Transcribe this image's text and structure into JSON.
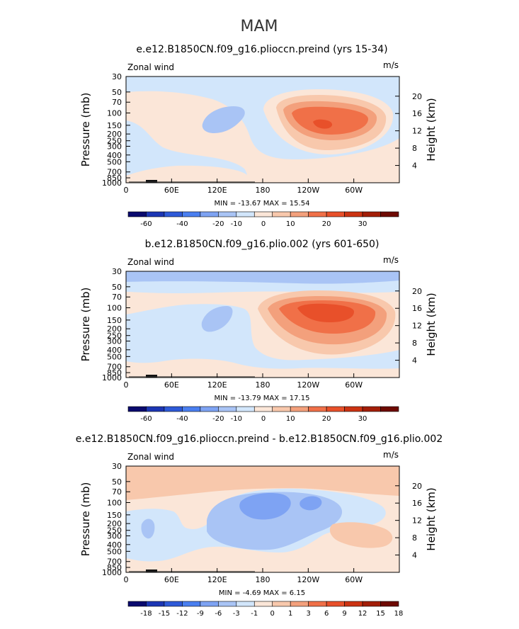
{
  "page": {
    "title": "MAM"
  },
  "chart_data": [
    {
      "type": "heatmap",
      "title": "e.e12.B1850CN.f09_g16.plioccn.preind (yrs 15-34)",
      "subtitle_left": "Zonal wind",
      "units": "m/s",
      "ylabel": "Pressure (mb)",
      "ylabel_right": "Height (km)",
      "x_ticks": [
        "0",
        "60E",
        "120E",
        "180",
        "120W",
        "60W"
      ],
      "y_ticks": [
        "30",
        "50",
        "70",
        "100",
        "150",
        "200",
        "250",
        "300",
        "400",
        "500",
        "700",
        "850",
        "1000"
      ],
      "y_right_ticks": [
        "20",
        "16",
        "12",
        "8",
        "4"
      ],
      "stats": "MIN = -13.67   MAX =  15.54",
      "min": -13.67,
      "max": 15.54,
      "colorbar_labels": [
        "-60",
        "-40",
        "-20",
        "-10",
        "0",
        "10",
        "20",
        "30"
      ],
      "levels": [
        -60,
        -50,
        -40,
        -30,
        -20,
        -15,
        -10,
        -5,
        0,
        5,
        10,
        15,
        20,
        25,
        30
      ]
    },
    {
      "type": "heatmap",
      "title": "b.e12.B1850CN.f09_g16.plio.002 (yrs 601-650)",
      "subtitle_left": "Zonal wind",
      "units": "m/s",
      "ylabel": "Pressure (mb)",
      "ylabel_right": "Height (km)",
      "x_ticks": [
        "0",
        "60E",
        "120E",
        "180",
        "120W",
        "60W"
      ],
      "y_ticks": [
        "30",
        "50",
        "70",
        "100",
        "150",
        "200",
        "250",
        "300",
        "400",
        "500",
        "700",
        "850",
        "1000"
      ],
      "y_right_ticks": [
        "20",
        "16",
        "12",
        "8",
        "4"
      ],
      "stats": "MIN = -13.79   MAX =  17.15",
      "min": -13.79,
      "max": 17.15,
      "colorbar_labels": [
        "-60",
        "-40",
        "-20",
        "-10",
        "0",
        "10",
        "20",
        "30"
      ],
      "levels": [
        -60,
        -50,
        -40,
        -30,
        -20,
        -15,
        -10,
        -5,
        0,
        5,
        10,
        15,
        20,
        25,
        30
      ]
    },
    {
      "type": "heatmap",
      "title": "e.e12.B1850CN.f09_g16.plioccn.preind - b.e12.B1850CN.f09_g16.plio.002",
      "subtitle_left": "Zonal wind",
      "units": "m/s",
      "ylabel": "Pressure (mb)",
      "ylabel_right": "Height (km)",
      "x_ticks": [
        "0",
        "60E",
        "120E",
        "180",
        "120W",
        "60W"
      ],
      "y_ticks": [
        "30",
        "50",
        "70",
        "100",
        "150",
        "200",
        "250",
        "300",
        "400",
        "500",
        "700",
        "850",
        "1000"
      ],
      "y_right_ticks": [
        "20",
        "16",
        "12",
        "8",
        "4"
      ],
      "stats": "MIN =  -4.69   MAX =   6.15",
      "min": -4.69,
      "max": 6.15,
      "colorbar_labels": [
        "-18",
        "-15",
        "-12",
        "-9",
        "-6",
        "-3",
        "-1",
        "0",
        "1",
        "3",
        "6",
        "9",
        "12",
        "15",
        "18"
      ],
      "levels": [
        -18,
        -15,
        -12,
        -9,
        -6,
        -3,
        -1,
        0,
        1,
        3,
        6,
        9,
        12,
        15,
        18
      ]
    }
  ],
  "colors": {
    "dark_blue": "#0a0a6e",
    "blue_1": "#1c36b4",
    "blue_2": "#2e5ad8",
    "blue_3": "#4a7ff0",
    "blue_4": "#7ea3f3",
    "blue_5": "#a9c4f5",
    "light_blue": "#d2e6fb",
    "light_peach": "#fbe6d8",
    "peach": "#f8c8ac",
    "salmon": "#f3a07c",
    "orange_red": "#f07048",
    "red_orange": "#e8502a",
    "red": "#cc3312",
    "dark_red": "#a31e08",
    "maroon": "#6e0a02"
  }
}
